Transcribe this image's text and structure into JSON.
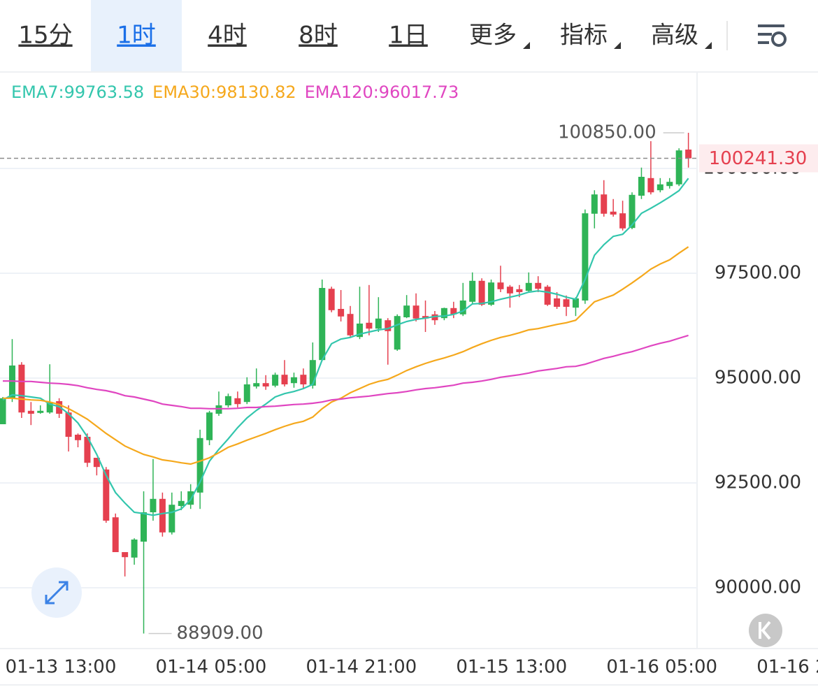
{
  "tabs": [
    "15分",
    "1时",
    "4时",
    "8时",
    "1日",
    "更多",
    "指标",
    "高级"
  ],
  "chart_data": {
    "type": "candlestick",
    "xlim": [
      -0.3,
      86.8
    ],
    "xticks": [
      {
        "value": 6,
        "label": "01-13 13:00"
      },
      {
        "value": 22,
        "label": "01-14 05:00"
      },
      {
        "value": 38,
        "label": "01-14 21:00"
      },
      {
        "value": 54,
        "label": "01-15 13:00"
      },
      {
        "value": 70,
        "label": "01-16 05:00"
      },
      {
        "value": 86,
        "label": "01-16 2"
      }
    ],
    "ylim": [
      88550,
      102300
    ],
    "yticks": [
      {
        "value": 90000,
        "label": "90000.00"
      },
      {
        "value": 92500,
        "label": "92500.00"
      },
      {
        "value": 95000,
        "label": "95000.00"
      },
      {
        "value": 97500,
        "label": "97500.00"
      },
      {
        "value": 100000,
        "label": "100000.00"
      }
    ],
    "grid": true,
    "up_color": "#2fb457",
    "down_color": "#e5404f",
    "open": [
      93900,
      94520,
      95320,
      94220,
      94170,
      94180,
      94450,
      94180,
      93650,
      93600,
      93100,
      92820,
      91680,
      90850,
      90720,
      91100,
      91800,
      92120,
      91320,
      91950,
      91980,
      92270,
      93520,
      94150,
      94350,
      94520,
      94430,
      94800,
      94880,
      94820,
      95080,
      94880,
      95080,
      94820,
      95430,
      97130,
      96650,
      96530,
      95980,
      96320,
      96180,
      96380,
      95680,
      96450,
      96730,
      96480,
      96520,
      96430,
      96670,
      96520,
      96820,
      97320,
      96750,
      97280,
      97180,
      97120,
      97080,
      97270,
      97180,
      96900,
      96880,
      96680,
      96850,
      98920,
      99380,
      98970,
      98930,
      98580,
      99350,
      99770,
      99480,
      99580,
      99620,
      100450
    ],
    "high": [
      94550,
      95930,
      95380,
      94430,
      94350,
      95330,
      94520,
      94350,
      93680,
      93680,
      93100,
      92880,
      91770,
      90850,
      91180,
      92300,
      93070,
      92270,
      92270,
      92300,
      92470,
      93770,
      94220,
      94680,
      94630,
      94680,
      95020,
      95230,
      95070,
      95130,
      95430,
      95130,
      95230,
      95850,
      97350,
      97180,
      97100,
      96720,
      97180,
      97220,
      96930,
      96430,
      96520,
      96980,
      97020,
      96850,
      96600,
      96680,
      96820,
      97270,
      97520,
      97380,
      97350,
      97680,
      97220,
      97220,
      97520,
      97430,
      97220,
      97050,
      96970,
      96930,
      99020,
      99480,
      99720,
      99270,
      99230,
      99430,
      100020,
      100650,
      99770,
      99770,
      100480,
      100850
    ],
    "low": [
      93900,
      94430,
      94050,
      93880,
      94150,
      94150,
      94050,
      93250,
      93350,
      92880,
      92680,
      91550,
      90850,
      90270,
      90550,
      88909,
      91600,
      91220,
      91270,
      91850,
      91880,
      91880,
      93400,
      94100,
      94300,
      94300,
      94380,
      94750,
      94720,
      94780,
      94800,
      94770,
      94750,
      94750,
      95400,
      96570,
      96350,
      95980,
      95930,
      96020,
      96100,
      95320,
      95650,
      96430,
      96350,
      96100,
      96270,
      96380,
      96430,
      96480,
      96750,
      96720,
      96720,
      97050,
      96680,
      96930,
      97050,
      97050,
      96720,
      96650,
      96480,
      96480,
      96770,
      98570,
      98850,
      98850,
      98520,
      98550,
      99270,
      99380,
      99430,
      99520,
      99580,
      100020
    ],
    "close": [
      94520,
      95300,
      94180,
      94150,
      94220,
      94430,
      94150,
      93600,
      93520,
      92980,
      92880,
      91600,
      90850,
      90730,
      91150,
      91800,
      92120,
      91320,
      91980,
      92070,
      92300,
      93570,
      94180,
      94350,
      94570,
      94380,
      94850,
      94880,
      94800,
      95080,
      94850,
      95020,
      94850,
      95430,
      97150,
      96620,
      96470,
      96020,
      96300,
      96180,
      96420,
      96120,
      96480,
      96730,
      96420,
      96420,
      96380,
      96670,
      96520,
      96850,
      97320,
      96750,
      97280,
      97120,
      97020,
      97050,
      97270,
      97130,
      96750,
      96700,
      96700,
      96900,
      98930,
      99380,
      98920,
      98900,
      98570,
      99370,
      99800,
      99430,
      99620,
      99680,
      100430,
      100241.3
    ],
    "lines": [
      {
        "name": "EMA7:99763.58",
        "color": "#33c6ad",
        "values": [
          94480,
          94600,
          94580,
          94550,
          94520,
          94380,
          94320,
          94150,
          93930,
          93600,
          93180,
          92680,
          92270,
          92020,
          91800,
          91770,
          91730,
          91770,
          91800,
          91880,
          92100,
          92520,
          93020,
          93300,
          93550,
          93820,
          94050,
          94230,
          94380,
          94550,
          94630,
          94680,
          94750,
          94850,
          95430,
          95820,
          95930,
          95970,
          96050,
          96100,
          96150,
          96180,
          96270,
          96350,
          96400,
          96430,
          96470,
          96480,
          96520,
          96600,
          96770,
          96780,
          96820,
          96880,
          96930,
          96980,
          97050,
          97080,
          97050,
          97000,
          96930,
          96880,
          97350,
          97930,
          98180,
          98380,
          98430,
          98650,
          98930,
          99050,
          99180,
          99320,
          99470,
          99763.58
        ]
      },
      {
        "name": "EMA30:98130.82",
        "color": "#f5a81c",
        "values": [
          94520,
          94520,
          94500,
          94480,
          94470,
          94430,
          94370,
          94270,
          94150,
          94020,
          93850,
          93680,
          93530,
          93380,
          93280,
          93180,
          93120,
          93050,
          93020,
          92980,
          92950,
          93020,
          93100,
          93220,
          93350,
          93430,
          93520,
          93600,
          93680,
          93770,
          93850,
          93920,
          93970,
          94070,
          94270,
          94430,
          94520,
          94650,
          94750,
          94850,
          94920,
          94970,
          95070,
          95180,
          95270,
          95350,
          95420,
          95480,
          95550,
          95630,
          95730,
          95820,
          95900,
          95970,
          96020,
          96080,
          96150,
          96180,
          96230,
          96280,
          96320,
          96380,
          96600,
          96820,
          96900,
          96980,
          97120,
          97270,
          97430,
          97600,
          97720,
          97820,
          97980,
          98130.82
        ]
      },
      {
        "name": "EMA120:96017.73",
        "color": "#e046c1",
        "values": [
          94930,
          94930,
          94920,
          94920,
          94900,
          94880,
          94870,
          94850,
          94820,
          94770,
          94730,
          94700,
          94650,
          94580,
          94550,
          94500,
          94450,
          94380,
          94350,
          94320,
          94280,
          94280,
          94270,
          94270,
          94270,
          94280,
          94300,
          94300,
          94320,
          94330,
          94350,
          94370,
          94380,
          94400,
          94430,
          94480,
          94500,
          94530,
          94550,
          94570,
          94600,
          94630,
          94650,
          94680,
          94720,
          94750,
          94770,
          94800,
          94830,
          94880,
          94900,
          94930,
          94970,
          95020,
          95050,
          95080,
          95120,
          95170,
          95200,
          95230,
          95270,
          95280,
          95330,
          95400,
          95470,
          95520,
          95580,
          95630,
          95700,
          95770,
          95830,
          95880,
          95950,
          96017.73
        ]
      }
    ],
    "max_label": {
      "value": 100850,
      "label": "100850.00"
    },
    "min_label": {
      "value": 88909,
      "label": "88909.00"
    },
    "last_price": {
      "value": 100241.3,
      "label": "100241.30"
    }
  }
}
